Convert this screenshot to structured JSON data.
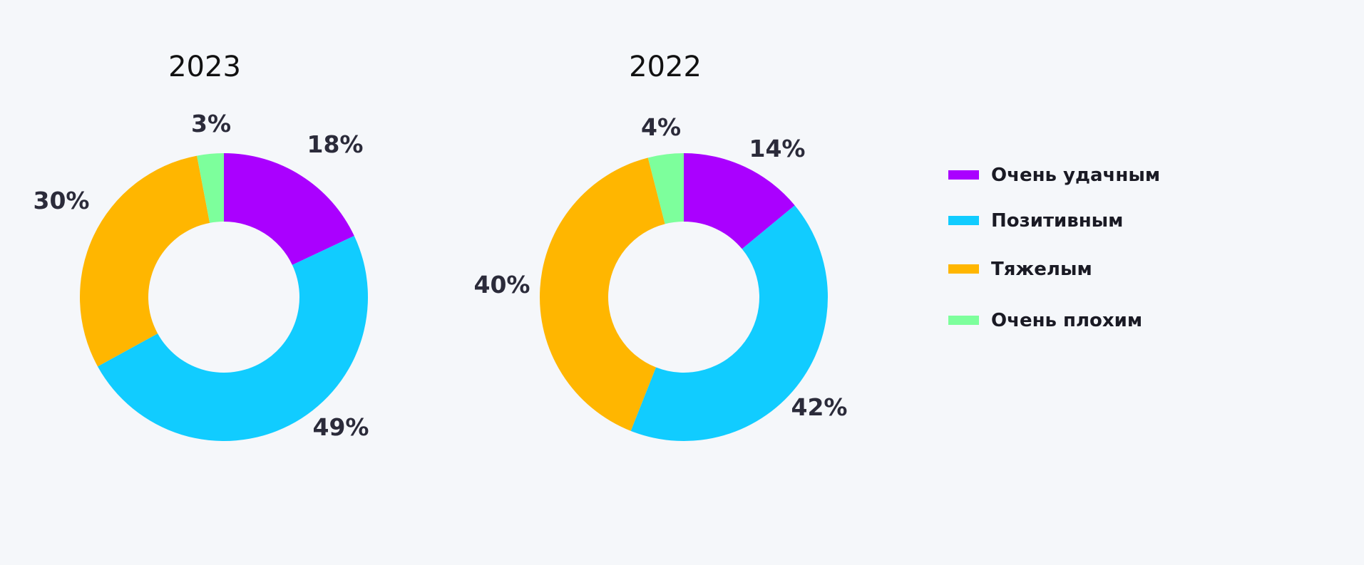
{
  "chart_data": [
    {
      "type": "pie",
      "title": "2023",
      "categories": [
        "Очень удачным",
        "Позитивным",
        "Тяжелым",
        "Очень плохим"
      ],
      "values": [
        18,
        49,
        30,
        3
      ],
      "data_labels": [
        "18%",
        "49%",
        "30%",
        "3%"
      ],
      "colors": [
        "#aa00ff",
        "#11ccff",
        "#ffb600",
        "#7dff9c"
      ],
      "legend": "right"
    },
    {
      "type": "pie",
      "title": "2022",
      "categories": [
        "Очень удачным",
        "Позитивным",
        "Тяжелым",
        "Очень плохим"
      ],
      "values": [
        14,
        42,
        40,
        4
      ],
      "data_labels": [
        "14%",
        "42%",
        "40%",
        "4%"
      ],
      "colors": [
        "#aa00ff",
        "#11ccff",
        "#ffb600",
        "#7dff9c"
      ],
      "legend": "right"
    }
  ],
  "legend": {
    "items": [
      {
        "label": "Очень удачным",
        "color": "#aa00ff"
      },
      {
        "label": "Позитивным",
        "color": "#11ccff"
      },
      {
        "label": "Тяжелым",
        "color": "#ffb600"
      },
      {
        "label": "Очень плохим",
        "color": "#7dff9c"
      }
    ]
  }
}
